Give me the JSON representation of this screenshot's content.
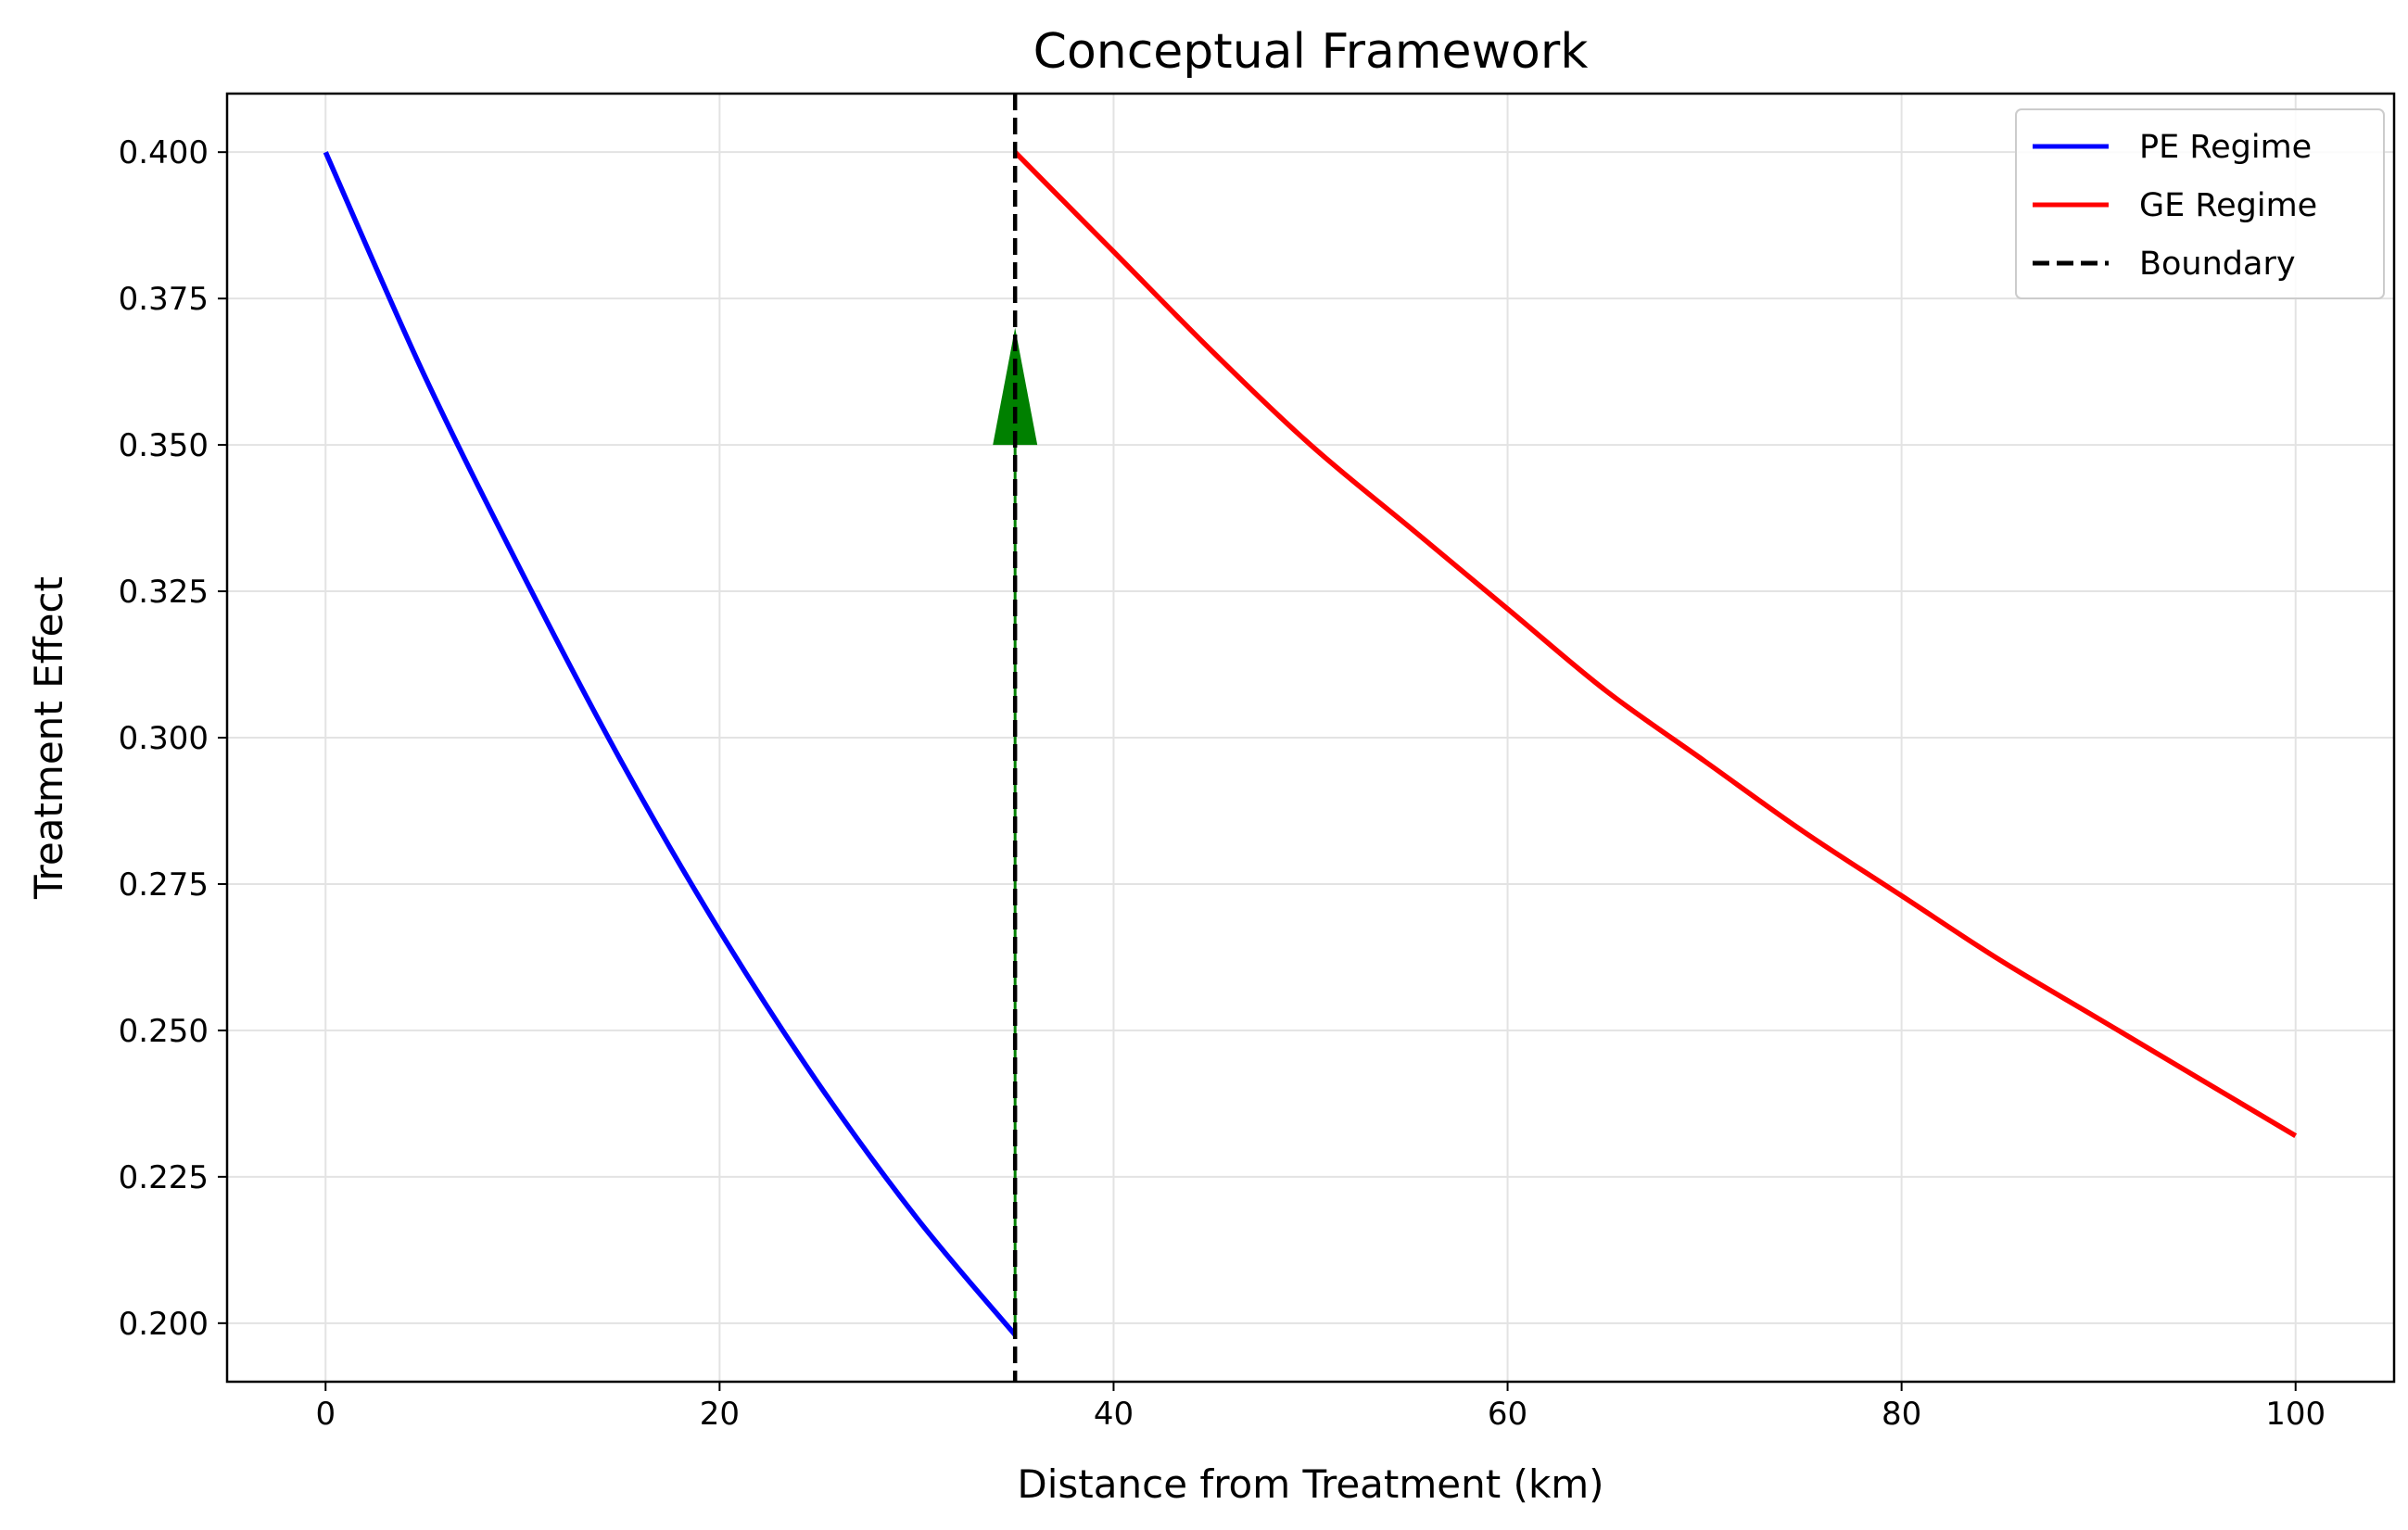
{
  "chart_data": {
    "type": "line",
    "title": "Conceptual Framework",
    "xlabel": "Distance from Treatment (km)",
    "ylabel": "Treatment Effect",
    "xlim": [
      -5,
      105
    ],
    "ylim": [
      0.19,
      0.41
    ],
    "xticks": [
      0,
      20,
      40,
      60,
      80,
      100
    ],
    "yticks": [
      0.2,
      0.225,
      0.25,
      0.275,
      0.3,
      0.325,
      0.35,
      0.375,
      0.4
    ],
    "xtick_labels": [
      "0",
      "20",
      "40",
      "60",
      "80",
      "100"
    ],
    "ytick_labels": [
      "0.200",
      "0.225",
      "0.250",
      "0.275",
      "0.300",
      "0.325",
      "0.350",
      "0.375",
      "0.400"
    ],
    "grid": true,
    "legend_position": "top-right",
    "series": [
      {
        "name": "PE Regime",
        "color": "#0000ff",
        "x": [
          0,
          5,
          10,
          15,
          20,
          25,
          30,
          35
        ],
        "y": [
          0.4,
          0.362,
          0.328,
          0.296,
          0.267,
          0.241,
          0.218,
          0.198
        ]
      },
      {
        "name": "GE Regime",
        "color": "#ff0000",
        "x": [
          35,
          40,
          45,
          50,
          55,
          60,
          65,
          70,
          75,
          80,
          85,
          90,
          95,
          100
        ],
        "y": [
          0.4,
          0.383,
          0.366,
          0.35,
          0.336,
          0.322,
          0.308,
          0.296,
          0.284,
          0.273,
          0.262,
          0.252,
          0.242,
          0.232
        ]
      }
    ],
    "boundary": {
      "name": "Boundary",
      "x": 35,
      "color": "#000000",
      "style": "dashed"
    },
    "arrow": {
      "x": 35,
      "y_start": 0.2,
      "y_end": 0.37,
      "color": "#008000"
    }
  }
}
